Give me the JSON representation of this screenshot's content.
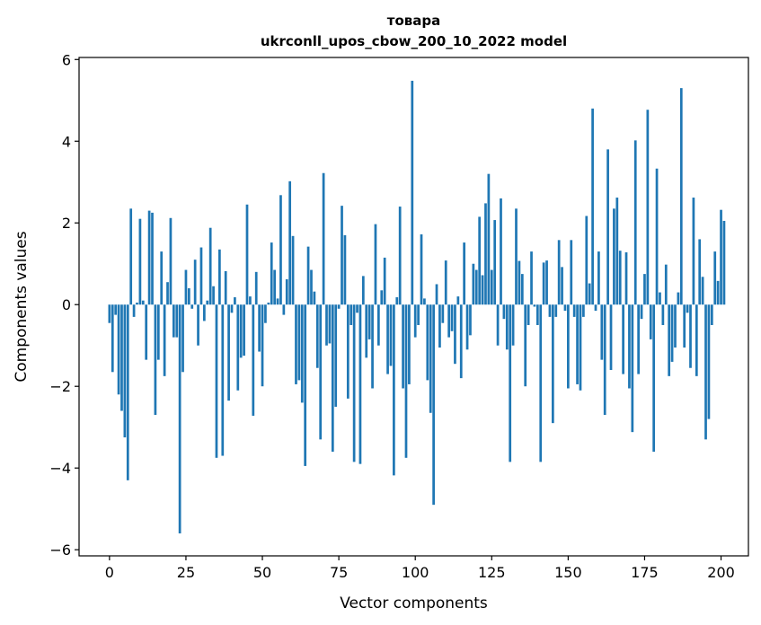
{
  "chart_data": {
    "type": "bar",
    "title": "товара",
    "subtitle": "ukrconll_upos_cbow_200_10_2022 model",
    "xlabel": "Vector components",
    "ylabel": "Components values",
    "xlim": [
      -9.95,
      208.95
    ],
    "ylim": [
      -6.15,
      6.05
    ],
    "xticks": [
      0,
      25,
      50,
      75,
      100,
      125,
      150,
      175,
      200
    ],
    "yticks": [
      -6,
      -4,
      -2,
      0,
      2,
      4,
      6
    ],
    "xtick_labels": [
      "0",
      "25",
      "50",
      "75",
      "100",
      "125",
      "150",
      "175",
      "200"
    ],
    "ytick_labels": [
      "−6",
      "−4",
      "−2",
      "0",
      "2",
      "4",
      "6"
    ],
    "bar_width": 0.8,
    "color": "#1f77b4",
    "grid": false,
    "values": [
      -0.45,
      -1.65,
      -0.25,
      -2.2,
      -2.6,
      -3.25,
      -4.3,
      2.35,
      -0.3,
      0.05,
      2.1,
      0.1,
      -1.35,
      2.3,
      2.25,
      -2.7,
      -1.35,
      1.3,
      -1.75,
      0.55,
      2.12,
      -0.8,
      -0.8,
      -5.6,
      -1.65,
      0.85,
      0.4,
      -0.1,
      1.1,
      -1.0,
      1.4,
      -0.4,
      0.1,
      1.88,
      0.45,
      -3.75,
      1.35,
      -3.7,
      0.82,
      -2.35,
      -0.2,
      0.18,
      -2.1,
      -1.3,
      -1.25,
      2.45,
      0.2,
      -2.72,
      0.8,
      -1.15,
      -2.0,
      -0.45,
      0.05,
      1.52,
      0.85,
      0.15,
      2.68,
      -0.25,
      0.62,
      3.02,
      1.68,
      -1.95,
      -1.85,
      -2.4,
      -3.95,
      1.42,
      0.85,
      0.32,
      -1.55,
      -3.3,
      3.22,
      -1.0,
      -0.95,
      -3.6,
      -2.5,
      -0.1,
      2.42,
      1.7,
      -2.3,
      -0.5,
      -3.85,
      -0.2,
      -3.9,
      0.7,
      -1.3,
      -0.85,
      -2.05,
      1.97,
      -1.0,
      0.35,
      1.15,
      -1.7,
      -1.5,
      -4.18,
      0.18,
      2.4,
      -2.05,
      -3.75,
      -1.95,
      5.48,
      -0.8,
      -0.5,
      1.72,
      0.15,
      -1.85,
      -2.65,
      -4.9,
      0.5,
      -1.05,
      -0.45,
      1.08,
      -0.8,
      -0.65,
      -1.45,
      0.2,
      -1.8,
      1.52,
      -1.1,
      -0.75,
      1.0,
      0.85,
      2.15,
      0.72,
      2.48,
      3.2,
      0.85,
      2.07,
      -1.0,
      2.6,
      -0.35,
      -1.1,
      -3.85,
      -1.0,
      2.35,
      1.07,
      0.75,
      -2.0,
      -0.5,
      1.3,
      -0.05,
      -0.5,
      -3.85,
      1.03,
      1.08,
      -0.3,
      -2.9,
      -0.3,
      1.58,
      0.92,
      -0.15,
      -2.05,
      1.58,
      -0.3,
      -1.95,
      -2.1,
      -0.3,
      2.17,
      0.52,
      4.8,
      -0.15,
      1.3,
      -1.35,
      -2.7,
      3.8,
      -1.6,
      2.35,
      2.62,
      1.32,
      -1.7,
      1.28,
      -2.05,
      -3.12,
      4.02,
      -1.7,
      -0.35,
      0.75,
      4.77,
      -0.85,
      -3.6,
      3.33,
      0.3,
      -0.5,
      0.98,
      -1.75,
      -1.4,
      -1.05,
      0.3,
      5.3,
      -1.05,
      -0.2,
      -1.55,
      2.62,
      -1.75,
      1.6,
      0.68,
      -3.3,
      -2.8,
      -0.5,
      1.3,
      0.58,
      2.32,
      2.05
    ]
  }
}
